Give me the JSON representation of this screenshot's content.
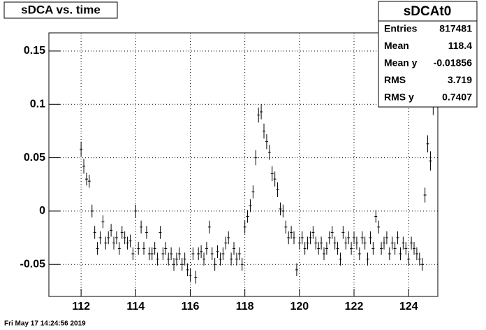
{
  "chart_data": {
    "type": "profile",
    "title": "sDCA vs. time",
    "x": [
      112.0,
      112.1,
      112.2,
      112.3,
      112.4,
      112.5,
      112.6,
      112.7,
      112.8,
      112.9,
      113.0,
      113.1,
      113.2,
      113.3,
      113.4,
      113.5,
      113.6,
      113.7,
      113.8,
      113.9,
      114.0,
      114.1,
      114.2,
      114.3,
      114.4,
      114.5,
      114.6,
      114.7,
      114.8,
      114.9,
      115.0,
      115.1,
      115.2,
      115.3,
      115.4,
      115.5,
      115.6,
      115.7,
      115.8,
      115.9,
      116.0,
      116.1,
      116.2,
      116.3,
      116.4,
      116.5,
      116.6,
      116.7,
      116.8,
      116.9,
      117.0,
      117.1,
      117.2,
      117.3,
      117.4,
      117.5,
      117.6,
      117.7,
      117.8,
      117.9,
      118.0,
      118.1,
      118.2,
      118.3,
      118.4,
      118.5,
      118.6,
      118.7,
      118.8,
      118.9,
      119.0,
      119.1,
      119.2,
      119.3,
      119.4,
      119.5,
      119.6,
      119.7,
      119.8,
      119.9,
      120.0,
      120.1,
      120.2,
      120.3,
      120.4,
      120.5,
      120.6,
      120.7,
      120.8,
      120.9,
      121.0,
      121.1,
      121.2,
      121.3,
      121.4,
      121.5,
      121.6,
      121.7,
      121.8,
      121.9,
      122.0,
      122.1,
      122.2,
      122.3,
      122.4,
      122.5,
      122.6,
      122.7,
      122.8,
      122.9,
      123.0,
      123.1,
      123.2,
      123.3,
      123.4,
      123.5,
      123.6,
      123.7,
      123.8,
      123.9,
      124.0,
      124.1,
      124.2,
      124.3,
      124.4,
      124.5,
      124.6,
      124.7,
      124.8,
      124.9
    ],
    "values": [
      0.058,
      0.042,
      0.03,
      0.028,
      0.0,
      -0.02,
      -0.035,
      -0.025,
      -0.01,
      -0.03,
      -0.025,
      -0.018,
      -0.03,
      -0.025,
      -0.035,
      -0.02,
      -0.025,
      -0.03,
      -0.028,
      -0.04,
      0.0,
      -0.035,
      -0.015,
      -0.035,
      -0.02,
      -0.04,
      -0.04,
      -0.035,
      -0.045,
      -0.02,
      -0.04,
      -0.035,
      -0.045,
      -0.04,
      -0.05,
      -0.045,
      -0.04,
      -0.05,
      -0.045,
      -0.055,
      -0.06,
      -0.04,
      -0.062,
      -0.04,
      -0.038,
      -0.045,
      -0.035,
      -0.015,
      -0.04,
      -0.05,
      -0.038,
      -0.045,
      -0.04,
      -0.03,
      -0.025,
      -0.045,
      -0.035,
      -0.045,
      -0.04,
      -0.05,
      -0.015,
      -0.005,
      0.005,
      0.018,
      0.05,
      0.09,
      0.093,
      0.075,
      0.065,
      0.055,
      0.035,
      0.03,
      0.02,
      0.002,
      0.0,
      -0.015,
      -0.025,
      -0.02,
      -0.025,
      -0.055,
      -0.03,
      -0.025,
      -0.035,
      -0.03,
      -0.025,
      -0.02,
      -0.03,
      -0.035,
      -0.03,
      -0.04,
      -0.035,
      -0.025,
      -0.02,
      -0.03,
      -0.035,
      -0.045,
      -0.02,
      -0.03,
      -0.025,
      -0.035,
      -0.025,
      -0.03,
      -0.04,
      -0.025,
      -0.03,
      -0.045,
      -0.025,
      -0.035,
      -0.005,
      -0.015,
      -0.035,
      -0.03,
      -0.025,
      -0.04,
      -0.03,
      -0.035,
      -0.025,
      -0.04,
      -0.03,
      -0.035,
      -0.045,
      -0.03,
      -0.035,
      -0.04,
      -0.045,
      -0.05,
      0.015,
      0.063,
      0.047,
      0.1
    ],
    "errors": [
      0.007,
      0.007,
      0.006,
      0.006,
      0.006,
      0.006,
      0.006,
      0.006,
      0.006,
      0.006,
      0.006,
      0.006,
      0.006,
      0.006,
      0.006,
      0.006,
      0.006,
      0.006,
      0.006,
      0.006,
      0.006,
      0.006,
      0.006,
      0.006,
      0.006,
      0.006,
      0.006,
      0.006,
      0.006,
      0.006,
      0.006,
      0.006,
      0.006,
      0.006,
      0.006,
      0.006,
      0.006,
      0.006,
      0.006,
      0.006,
      0.006,
      0.006,
      0.006,
      0.006,
      0.006,
      0.006,
      0.006,
      0.006,
      0.006,
      0.006,
      0.006,
      0.006,
      0.006,
      0.006,
      0.006,
      0.006,
      0.006,
      0.006,
      0.006,
      0.006,
      0.006,
      0.006,
      0.006,
      0.006,
      0.007,
      0.007,
      0.007,
      0.007,
      0.007,
      0.007,
      0.007,
      0.007,
      0.007,
      0.006,
      0.006,
      0.006,
      0.006,
      0.006,
      0.006,
      0.006,
      0.006,
      0.006,
      0.006,
      0.006,
      0.006,
      0.006,
      0.006,
      0.006,
      0.006,
      0.006,
      0.006,
      0.006,
      0.006,
      0.006,
      0.006,
      0.006,
      0.006,
      0.006,
      0.006,
      0.006,
      0.006,
      0.006,
      0.006,
      0.006,
      0.006,
      0.006,
      0.006,
      0.006,
      0.006,
      0.006,
      0.006,
      0.006,
      0.006,
      0.006,
      0.006,
      0.006,
      0.006,
      0.006,
      0.006,
      0.006,
      0.006,
      0.006,
      0.006,
      0.006,
      0.006,
      0.006,
      0.007,
      0.008,
      0.009,
      0.01
    ],
    "color": "#000000",
    "xlim": [
      110.82,
      125.07
    ],
    "xticks": [
      112,
      114,
      116,
      118,
      120,
      122,
      124
    ],
    "ylim": [
      -0.08,
      0.167
    ],
    "yticks": [
      -0.05,
      0,
      0.05,
      0.1,
      0.15
    ],
    "grid": true,
    "stats": {
      "title": "sDCAt0",
      "rows": [
        [
          "Entries",
          817481
        ],
        [
          "Mean",
          118.4
        ],
        [
          "Mean y",
          -0.01856
        ],
        [
          "RMS",
          3.719
        ],
        [
          "RMS y",
          0.7407
        ]
      ]
    },
    "footer": "Fri May 17 14:24:56 2019"
  }
}
